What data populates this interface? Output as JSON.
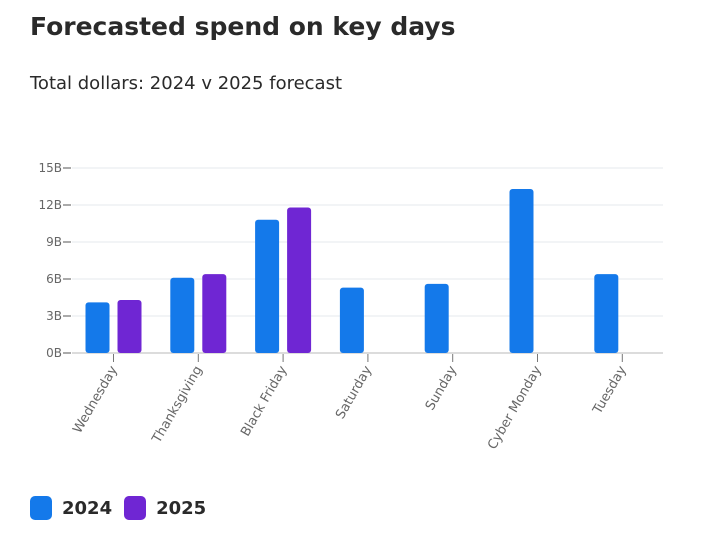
{
  "chart_data": {
    "type": "bar",
    "title": "Forecasted spend on key days",
    "subtitle": "Total dollars: 2024 v 2025 forecast",
    "xlabel": "",
    "ylabel": "",
    "ylim": [
      0,
      15
    ],
    "yticks": [
      0,
      3,
      6,
      9,
      12,
      15
    ],
    "ytick_labels": [
      "0B",
      "3B",
      "6B",
      "9B",
      "12B",
      "15B"
    ],
    "grid": true,
    "legend_position": "bottom-left",
    "categories": [
      "Wednesday",
      "Thanksgiving",
      "Black Friday",
      "Saturday",
      "Sunday",
      "Cyber Monday",
      "Tuesday"
    ],
    "series": [
      {
        "name": "2024",
        "color": "#1479ea",
        "values": [
          4.1,
          6.1,
          10.8,
          5.3,
          5.6,
          13.3,
          6.4
        ]
      },
      {
        "name": "2025",
        "color": "#6f26d3",
        "values": [
          4.3,
          6.4,
          11.8,
          null,
          null,
          null,
          null
        ]
      }
    ]
  }
}
